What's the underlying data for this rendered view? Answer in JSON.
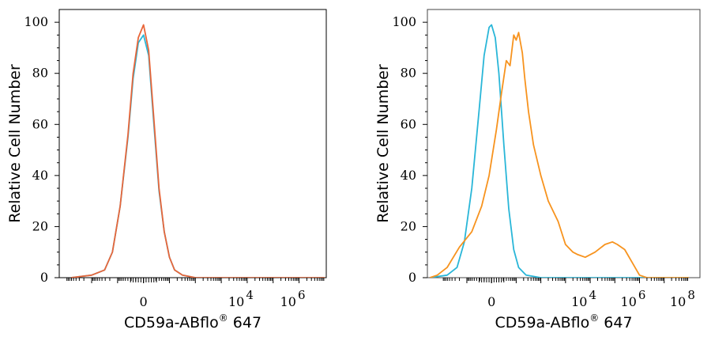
{
  "colors": {
    "isotype": "#29b6d8",
    "antibody": "#f7931e",
    "overlay": "#e8663a",
    "axis": "#000000"
  },
  "chart_data": [
    {
      "type": "line",
      "xlabel_text": "CD59a-ABflo",
      "xlabel_sup": "®",
      "xlabel_tail": " 647",
      "ylabel": "Relative Cell Number",
      "ylim": [
        0,
        100
      ],
      "y_ticks": [
        "0",
        "20",
        "40",
        "60",
        "80",
        "100"
      ],
      "x_tick_labels": [
        {
          "label": "0",
          "value": 0
        },
        {
          "base": "10",
          "exp": "4",
          "value": 4
        },
        {
          "base": "10",
          "exp": "6",
          "value": 6
        }
      ],
      "series": [
        {
          "color": "#29b6d8",
          "x": [
            -2.8,
            -2,
            -1.5,
            -1.2,
            -0.9,
            -0.6,
            -0.4,
            -0.2,
            0,
            0.2,
            0.4,
            0.6,
            0.8,
            1,
            1.2,
            1.5,
            2,
            2.5,
            3.5,
            5,
            7
          ],
          "y": [
            0,
            1,
            3,
            10,
            28,
            55,
            78,
            92,
            95,
            87,
            60,
            34,
            18,
            8,
            3,
            1,
            0,
            0,
            0,
            0,
            0
          ]
        },
        {
          "color": "#e8663a",
          "x": [
            -2.8,
            -2,
            -1.5,
            -1.2,
            -0.9,
            -0.6,
            -0.4,
            -0.2,
            0,
            0.2,
            0.4,
            0.6,
            0.8,
            1,
            1.2,
            1.5,
            2,
            2.5,
            3.5,
            5,
            7
          ],
          "y": [
            0,
            1,
            3,
            10,
            28,
            56,
            80,
            94,
            99,
            89,
            62,
            35,
            18,
            8,
            3,
            1,
            0,
            0,
            0,
            0,
            0
          ]
        }
      ]
    },
    {
      "type": "line",
      "xlabel_text": "CD59a-ABflo",
      "xlabel_sup": "®",
      "xlabel_tail": " 647",
      "ylabel": "Relative Cell Number",
      "ylim": [
        0,
        100
      ],
      "y_ticks": [
        "0",
        "20",
        "40",
        "60",
        "80",
        "100"
      ],
      "x_tick_labels": [
        {
          "label": "0",
          "value": 0
        },
        {
          "base": "10",
          "exp": "4",
          "value": 4
        },
        {
          "base": "10",
          "exp": "6",
          "value": 6
        },
        {
          "base": "10",
          "exp": "8",
          "value": 8
        }
      ],
      "series": [
        {
          "color": "#29b6d8",
          "x": [
            -2.5,
            -1.8,
            -1.4,
            -1.1,
            -0.8,
            -0.5,
            -0.3,
            -0.1,
            0,
            0.15,
            0.3,
            0.5,
            0.7,
            0.9,
            1.1,
            1.4,
            2,
            3,
            5,
            8
          ],
          "y": [
            0,
            1,
            4,
            14,
            35,
            66,
            87,
            98,
            99,
            94,
            80,
            52,
            27,
            11,
            4,
            1,
            0,
            0,
            0,
            0
          ]
        },
        {
          "color": "#f7931e",
          "x": [
            -2.5,
            -2.2,
            -1.8,
            -1.3,
            -0.8,
            -0.4,
            -0.1,
            0.2,
            0.4,
            0.6,
            0.75,
            0.9,
            1,
            1.1,
            1.25,
            1.35,
            1.5,
            1.7,
            2,
            2.3,
            2.7,
            3,
            3.3,
            3.5,
            3.8,
            4.2,
            4.6,
            4.9,
            5.1,
            5.4,
            5.7,
            6,
            6.3,
            6.6,
            7,
            8
          ],
          "y": [
            0,
            1,
            4,
            12,
            18,
            28,
            40,
            58,
            72,
            85,
            83,
            95,
            93,
            96,
            88,
            78,
            65,
            52,
            40,
            30,
            22,
            13,
            10,
            9,
            8,
            10,
            13,
            14,
            13,
            11,
            6,
            1,
            0,
            0,
            0,
            0
          ]
        }
      ]
    }
  ]
}
